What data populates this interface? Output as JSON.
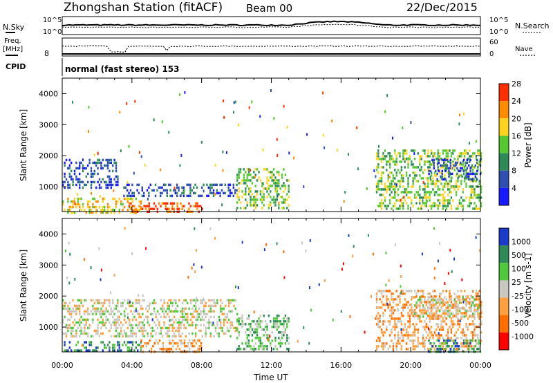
{
  "header": {
    "station": "Zhongshan Station (fitACF)",
    "beam": "Beam 00",
    "date": "22/Dec/2015"
  },
  "top_panels": {
    "nsky_label": "N.Sky",
    "nsearch_label": "N.Search",
    "noise_ticks": [
      "10^5",
      "10^0"
    ],
    "freq_label_line1": "Freq.",
    "freq_label_line2": "[MHz]",
    "freq_ticks": [
      "8"
    ],
    "nave_label": "Nave",
    "nave_ticks": [
      "60",
      "0"
    ],
    "cpid_label": "CPID",
    "cpid_text": "normal (fast stereo) 153"
  },
  "colors": {
    "power": [
      "#1a1aff",
      "#2f4fb0",
      "#2e8b57",
      "#55c832",
      "#ffd21e",
      "#ff8c00",
      "#ff3000"
    ],
    "velocity": [
      "#ff0000",
      "#ff6e00",
      "#ffa040",
      "#c8c8c0",
      "#50c83c",
      "#2e8b57",
      "#1a3cc8"
    ]
  },
  "chart_data": [
    {
      "type": "heatmap",
      "parameter": "Power",
      "xlabel": "",
      "ylabel": "Slant Range [km]",
      "xlim": [
        "00:00",
        "24:00"
      ],
      "ylim": [
        200,
        4500
      ],
      "yticks": [
        "1000",
        "2000",
        "3000",
        "4000"
      ],
      "colorbar_label": "Power [dB]",
      "colorbar_ticks": [
        "4",
        "8",
        "12",
        "16",
        "20",
        "24",
        "28"
      ],
      "legend": "right",
      "echo_regions": [
        {
          "t0": 0.0,
          "t1": 3.2,
          "r0": 1000,
          "r1": 1900,
          "level": 1
        },
        {
          "t0": 0.0,
          "t1": 4.5,
          "r0": 200,
          "r1": 650,
          "level": 4
        },
        {
          "t0": 3.8,
          "t1": 8.0,
          "r0": 200,
          "r1": 500,
          "level": 6
        },
        {
          "t0": 3.5,
          "t1": 10.0,
          "r0": 700,
          "r1": 1100,
          "level": 1
        },
        {
          "t0": 10.0,
          "t1": 13.0,
          "r0": 300,
          "r1": 1600,
          "level": 3
        },
        {
          "t0": 18.0,
          "t1": 24.0,
          "r0": 300,
          "r1": 2200,
          "level": 3
        },
        {
          "t0": 21.0,
          "t1": 24.0,
          "r0": 1200,
          "r1": 1900,
          "level": 1
        }
      ]
    },
    {
      "type": "heatmap",
      "parameter": "Velocity",
      "xlabel": "Time UT",
      "ylabel": "Slant Range [km]",
      "xlim": [
        "00:00",
        "24:00"
      ],
      "xticks": [
        "00:00",
        "04:00",
        "08:00",
        "12:00",
        "16:00",
        "20:00",
        "00:00"
      ],
      "ylim": [
        200,
        4500
      ],
      "yticks": [
        "1000",
        "2000",
        "3000",
        "4000"
      ],
      "colorbar_label": "Velocity [m s-1]",
      "colorbar_ticks": [
        "1000",
        "500",
        "100",
        "25",
        "-25",
        "-100",
        "-500",
        "-1000"
      ],
      "legend": "right",
      "echo_regions": [
        {
          "t0": 0.0,
          "t1": 10.0,
          "r0": 700,
          "r1": 1900,
          "level": 3
        },
        {
          "t0": 0.0,
          "t1": 4.5,
          "r0": 200,
          "r1": 550,
          "level": 5
        },
        {
          "t0": 4.5,
          "t1": 8.0,
          "r0": 200,
          "r1": 600,
          "level": 2
        },
        {
          "t0": 10.0,
          "t1": 13.0,
          "r0": 300,
          "r1": 1400,
          "level": 4
        },
        {
          "t0": 18.0,
          "t1": 24.0,
          "r0": 300,
          "r1": 2200,
          "level": 2
        },
        {
          "t0": 20.0,
          "t1": 24.0,
          "r0": 1300,
          "r1": 2000,
          "level": 3
        },
        {
          "t0": 21.0,
          "t1": 24.0,
          "r0": 200,
          "r1": 600,
          "level": 5
        }
      ]
    }
  ]
}
